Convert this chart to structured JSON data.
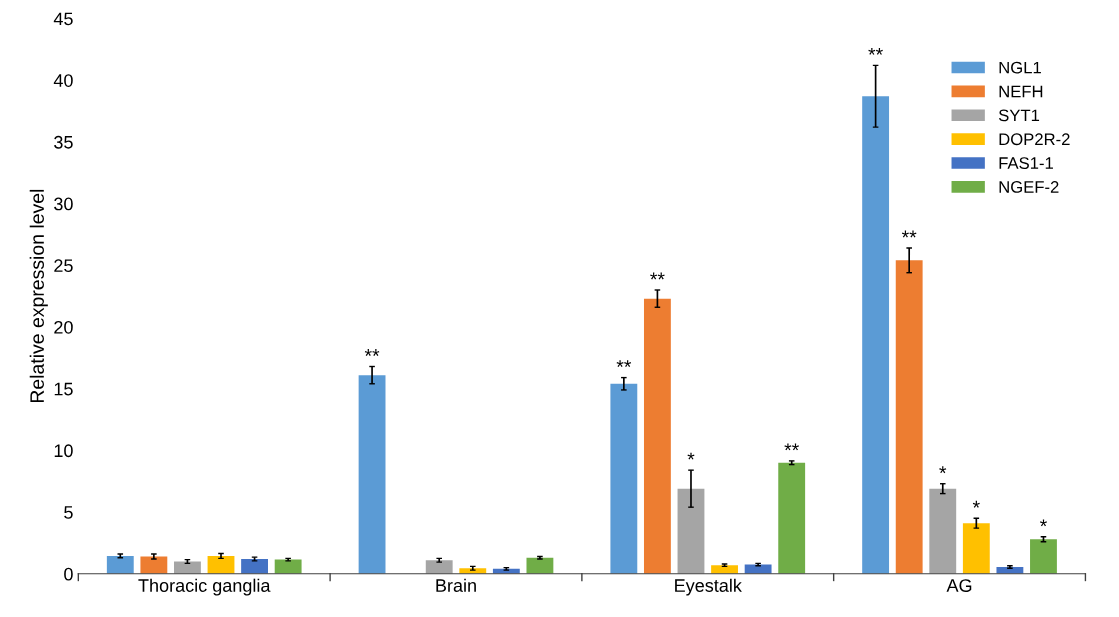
{
  "chart_data": {
    "type": "bar",
    "ylabel": "Relative expression level",
    "categories": [
      "Thoracic ganglia",
      "Brain",
      "Eyestalk",
      "AG"
    ],
    "ylim": [
      0,
      45
    ],
    "yticks": [
      0,
      5,
      10,
      15,
      20,
      25,
      30,
      35,
      40,
      45
    ],
    "grid": false,
    "legend": "top right",
    "series": [
      {
        "name": "NGL1",
        "color": "#5b9bd5",
        "values": [
          1.45,
          16.1,
          15.4,
          38.7
        ],
        "errors": [
          0.15,
          0.7,
          0.5,
          2.5
        ],
        "value_labels": [
          null,
          "**",
          "**",
          "**"
        ]
      },
      {
        "name": "NEFH",
        "color": "#ed7d31",
        "values": [
          1.4,
          null,
          22.3,
          25.4
        ],
        "errors": [
          0.2,
          null,
          0.7,
          1.0
        ],
        "value_labels": [
          null,
          null,
          "**",
          "**"
        ]
      },
      {
        "name": "SYT1",
        "color": "#a5a5a5",
        "values": [
          1.0,
          1.1,
          6.9,
          6.9
        ],
        "errors": [
          0.15,
          0.15,
          1.5,
          0.4
        ],
        "value_labels": [
          null,
          null,
          "*",
          "*"
        ]
      },
      {
        "name": "DOP2R-2",
        "color": "#ffc000",
        "values": [
          1.45,
          0.45,
          0.7,
          4.1
        ],
        "errors": [
          0.2,
          0.15,
          0.1,
          0.4
        ],
        "value_labels": [
          null,
          null,
          null,
          "*"
        ]
      },
      {
        "name": "FAS1-1",
        "color": "#4472c4",
        "values": [
          1.2,
          0.4,
          0.75,
          0.55
        ],
        "errors": [
          0.15,
          0.1,
          0.1,
          0.1
        ],
        "value_labels": [
          null,
          null,
          null,
          null
        ]
      },
      {
        "name": "NGEF-2",
        "color": "#70ad47",
        "values": [
          1.15,
          1.3,
          9.0,
          2.8
        ],
        "errors": [
          0.1,
          0.1,
          0.15,
          0.2
        ],
        "value_labels": [
          null,
          null,
          "**",
          "*"
        ]
      }
    ]
  }
}
